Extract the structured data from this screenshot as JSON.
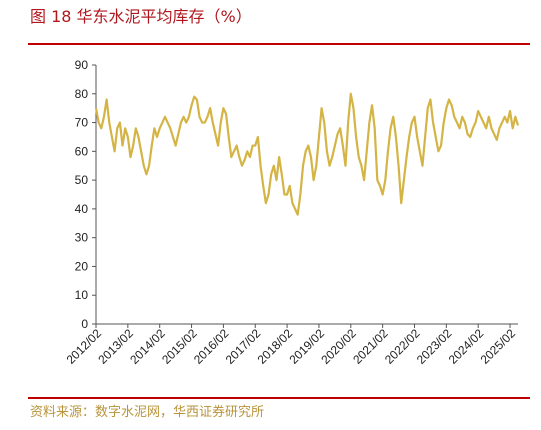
{
  "chart_data": {
    "type": "line",
    "title": "图 18 华东水泥平均库存（%）",
    "source": "资料来源：数字水泥网，华西证券研究所",
    "categories": [
      "2012/02",
      null,
      null,
      null,
      null,
      null,
      null,
      null,
      null,
      null,
      null,
      null,
      "2013/02",
      null,
      null,
      null,
      null,
      null,
      null,
      null,
      null,
      null,
      null,
      null,
      "2014/02",
      null,
      null,
      null,
      null,
      null,
      null,
      null,
      null,
      null,
      null,
      null,
      "2015/02",
      null,
      null,
      null,
      null,
      null,
      null,
      null,
      null,
      null,
      null,
      null,
      "2016/02",
      null,
      null,
      null,
      null,
      null,
      null,
      null,
      null,
      null,
      null,
      null,
      "2017/02",
      null,
      null,
      null,
      null,
      null,
      null,
      null,
      null,
      null,
      null,
      null,
      "2018/02",
      null,
      null,
      null,
      null,
      null,
      null,
      null,
      null,
      null,
      null,
      null,
      "2019/02",
      null,
      null,
      null,
      null,
      null,
      null,
      null,
      null,
      null,
      null,
      null,
      "2020/02",
      null,
      null,
      null,
      null,
      null,
      null,
      null,
      null,
      null,
      null,
      null,
      "2021/02",
      null,
      null,
      null,
      null,
      null,
      null,
      null,
      null,
      null,
      null,
      null,
      "2022/02",
      null,
      null,
      null,
      null,
      null,
      null,
      null,
      null,
      null,
      null,
      null,
      "2023/02",
      null,
      null,
      null,
      null,
      null,
      null,
      null,
      null,
      null,
      null,
      null,
      "2024/02",
      null,
      null,
      null,
      null,
      null,
      null,
      null,
      null,
      null,
      null,
      null,
      "2025/02",
      null,
      null,
      null
    ],
    "series": [
      {
        "name": "华东水泥平均库存",
        "color": "#d4b445",
        "values": [
          75,
          70,
          68,
          72,
          78,
          70,
          65,
          60,
          68,
          70,
          62,
          68,
          65,
          58,
          62,
          68,
          65,
          60,
          55,
          52,
          55,
          62,
          68,
          65,
          68,
          70,
          72,
          70,
          68,
          65,
          62,
          66,
          70,
          72,
          70,
          72,
          76,
          79,
          78,
          72,
          70,
          70,
          72,
          75,
          70,
          66,
          62,
          70,
          75,
          73,
          65,
          58,
          60,
          62,
          58,
          55,
          57,
          60,
          58,
          62,
          62,
          65,
          55,
          48,
          42,
          45,
          52,
          55,
          50,
          58,
          52,
          45,
          45,
          48,
          42,
          40,
          38,
          45,
          55,
          60,
          62,
          58,
          50,
          55,
          65,
          75,
          70,
          60,
          55,
          58,
          62,
          66,
          68,
          62,
          55,
          70,
          80,
          75,
          65,
          58,
          55,
          50,
          60,
          70,
          76,
          68,
          50,
          48,
          45,
          50,
          60,
          68,
          72,
          65,
          55,
          42,
          50,
          58,
          65,
          70,
          72,
          65,
          60,
          55,
          65,
          75,
          78,
          70,
          65,
          60,
          62,
          70,
          75,
          78,
          76,
          72,
          70,
          68,
          72,
          70,
          66,
          65,
          68,
          70,
          74,
          72,
          70,
          68,
          72,
          68,
          66,
          64,
          68,
          70,
          72,
          70,
          74,
          68,
          72,
          69
        ]
      }
    ],
    "ylim": [
      0,
      90
    ],
    "yticks": [
      0,
      10,
      20,
      30,
      40,
      50,
      60,
      70,
      80,
      90
    ]
  }
}
